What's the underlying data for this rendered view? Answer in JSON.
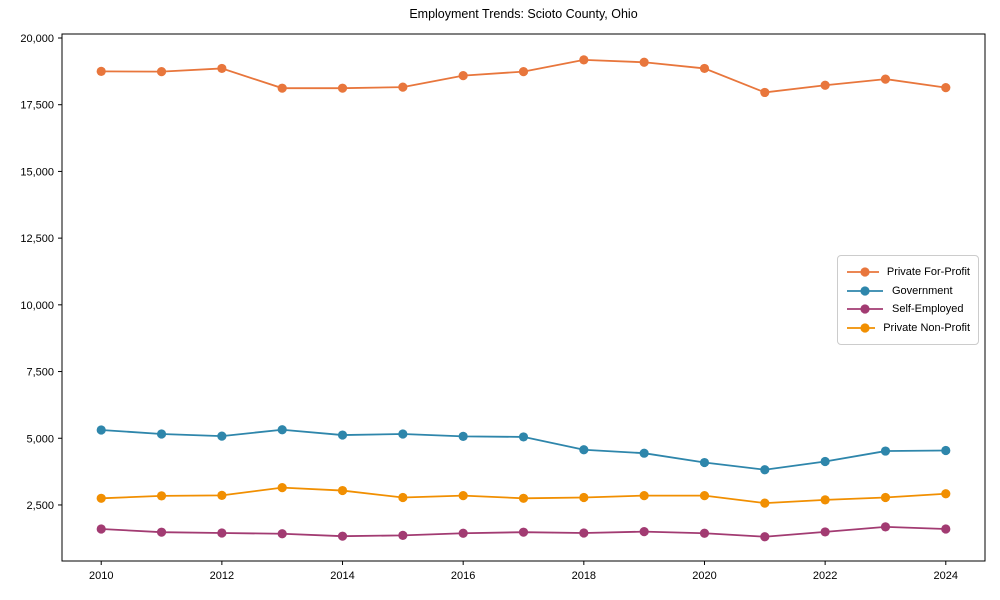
{
  "chart_data": {
    "type": "line",
    "title": "Employment Trends: Scioto County, Ohio",
    "xlabel": "",
    "ylabel": "",
    "x": [
      2010,
      2011,
      2012,
      2013,
      2014,
      2015,
      2016,
      2017,
      2018,
      2019,
      2020,
      2021,
      2022,
      2023,
      2024
    ],
    "series": [
      {
        "name": "Private For-Profit",
        "color": "#E8763C",
        "values": [
          18750,
          18740,
          18860,
          18120,
          18120,
          18160,
          18590,
          18740,
          19180,
          19090,
          18860,
          17960,
          18230,
          18460,
          18140
        ]
      },
      {
        "name": "Government",
        "color": "#2E86AB",
        "values": [
          5310,
          5160,
          5080,
          5320,
          5120,
          5160,
          5070,
          5050,
          4570,
          4440,
          4090,
          3820,
          4130,
          4520,
          4540
        ]
      },
      {
        "name": "Self-Employed",
        "color": "#A23B72",
        "values": [
          1600,
          1480,
          1450,
          1420,
          1330,
          1360,
          1440,
          1480,
          1450,
          1500,
          1440,
          1310,
          1490,
          1680,
          1600
        ]
      },
      {
        "name": "Private Non-Profit",
        "color": "#F18F01",
        "values": [
          2750,
          2840,
          2860,
          3150,
          3040,
          2780,
          2850,
          2750,
          2780,
          2850,
          2850,
          2570,
          2690,
          2780,
          2920
        ]
      }
    ],
    "xticks": [
      2010,
      2012,
      2014,
      2016,
      2018,
      2020,
      2022,
      2024
    ],
    "yticks": [
      2500,
      5000,
      7500,
      10000,
      12500,
      15000,
      17500,
      20000
    ],
    "xlim": [
      2009.35,
      2024.65
    ],
    "ylim": [
      400,
      20150
    ],
    "grid": false,
    "legend_position": "right-center",
    "marker": "circle",
    "axis_color": "#000000",
    "background": "#ffffff"
  }
}
